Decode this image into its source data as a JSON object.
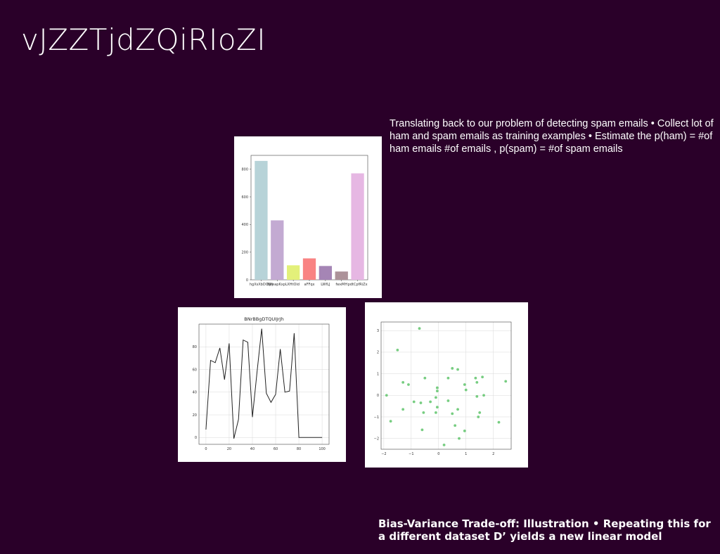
{
  "slide": {
    "title": "vJZZTjdZQiRIoZI",
    "body": "Translating back to our problem of detecting spam emails • Collect lot of ham and spam emails as training examples • Estimate the p(ham) = #of ham emails #of emails , p(spam) = #of spam emails",
    "footer": "Bias-Variance Trade-off: Illustration • Repeating this for a different dataset D’ yields a new linear model"
  },
  "chart_data": [
    {
      "type": "bar",
      "title": "",
      "categories": [
        "hgXsXbDOWj",
        "BjiwapKxpL",
        "XHtOid",
        "aFFqx",
        "LWfLJ",
        "fwxMH",
        "pdtCpfRiZx"
      ],
      "values": [
        860,
        430,
        105,
        155,
        100,
        60,
        770
      ],
      "colors": [
        "#b7d3d8",
        "#c3aad2",
        "#e3f07a",
        "#f98383",
        "#a585b5",
        "#ac9299",
        "#e6b7e3"
      ],
      "ylim": [
        0,
        900
      ],
      "yticks": [
        0,
        200,
        400,
        600,
        800
      ],
      "grid": false
    },
    {
      "type": "line",
      "title": "BNrBBgDTQUIJrJh",
      "x": [
        0,
        4,
        8,
        12,
        16,
        20,
        24,
        28,
        32,
        36,
        40,
        44,
        48,
        52,
        56,
        60,
        64,
        68,
        72,
        76,
        80,
        84,
        88,
        92,
        96,
        100
      ],
      "y": [
        7,
        68,
        66,
        79,
        51,
        83,
        -1,
        16,
        86,
        84,
        18,
        58,
        96,
        39,
        31,
        38,
        78,
        40,
        41,
        92,
        0,
        0,
        0,
        0,
        0,
        0
      ],
      "color": "#222222",
      "xlim": [
        -6,
        106
      ],
      "ylim": [
        -6,
        100
      ],
      "xticks": [
        0,
        20,
        40,
        60,
        80,
        100
      ],
      "yticks": [
        0,
        20,
        40,
        60,
        80
      ],
      "grid": true
    },
    {
      "type": "scatter",
      "title": "",
      "color": "#5fc46b",
      "xlim": [
        -2.1,
        2.65
      ],
      "ylim": [
        -2.5,
        3.4
      ],
      "xticks": [
        -2,
        -1,
        0,
        1,
        2
      ],
      "yticks": [
        -2,
        -1,
        0,
        1,
        2,
        3
      ],
      "grid": true,
      "points": [
        [
          -0.7,
          3.1
        ],
        [
          -1.5,
          2.1
        ],
        [
          -1.3,
          0.6
        ],
        [
          -1.1,
          0.5
        ],
        [
          -1.9,
          0.0
        ],
        [
          -1.3,
          -0.65
        ],
        [
          -1.75,
          -1.2
        ],
        [
          -0.9,
          -0.3
        ],
        [
          -0.65,
          -0.35
        ],
        [
          -0.5,
          0.8
        ],
        [
          -0.3,
          -0.3
        ],
        [
          -0.05,
          0.35
        ],
        [
          -0.05,
          0.2
        ],
        [
          -0.1,
          -0.1
        ],
        [
          -0.05,
          -0.55
        ],
        [
          -0.1,
          -0.8
        ],
        [
          -0.55,
          -0.8
        ],
        [
          -0.6,
          -1.6
        ],
        [
          0.2,
          -2.3
        ],
        [
          0.35,
          0.8
        ],
        [
          0.35,
          -0.25
        ],
        [
          0.5,
          1.25
        ],
        [
          0.5,
          -0.85
        ],
        [
          0.6,
          -1.4
        ],
        [
          0.7,
          1.2
        ],
        [
          0.7,
          -0.65
        ],
        [
          0.75,
          -2.0
        ],
        [
          0.95,
          -1.65
        ],
        [
          0.95,
          0.5
        ],
        [
          1.0,
          0.25
        ],
        [
          1.35,
          0.8
        ],
        [
          1.4,
          0.6
        ],
        [
          1.4,
          -0.05
        ],
        [
          1.45,
          -1.0
        ],
        [
          1.5,
          -0.8
        ],
        [
          1.6,
          0.85
        ],
        [
          1.65,
          0.0
        ],
        [
          2.2,
          -1.25
        ],
        [
          2.45,
          0.65
        ]
      ]
    }
  ]
}
